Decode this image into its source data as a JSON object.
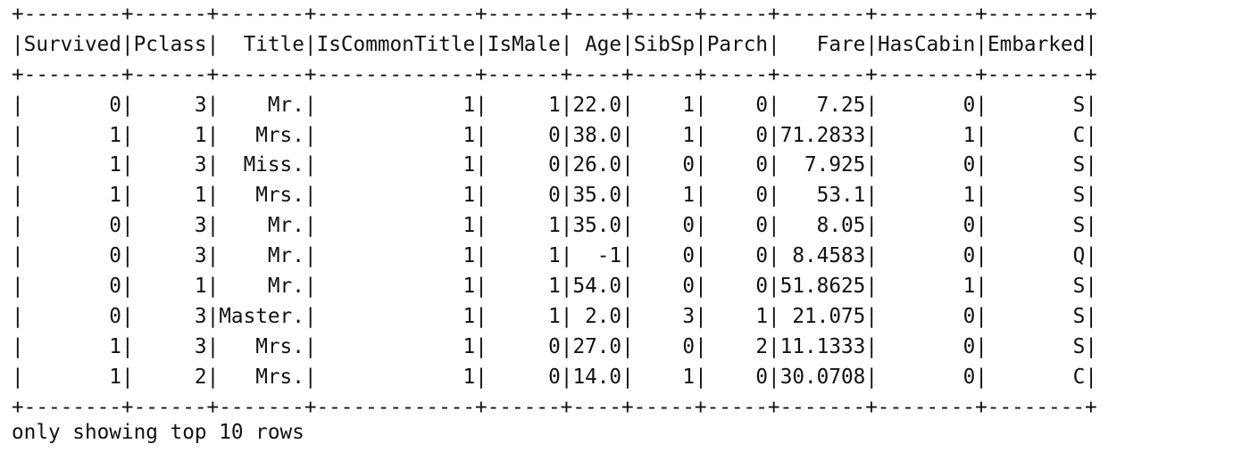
{
  "table": {
    "columns": [
      "Survived",
      "Pclass",
      "Title",
      "IsCommonTitle",
      "IsMale",
      "Age",
      "SibSp",
      "Parch",
      "Fare",
      "HasCabin",
      "Embarked"
    ],
    "rows": [
      [
        "0",
        "3",
        "Mr.",
        "1",
        "1",
        "22.0",
        "1",
        "0",
        "7.25",
        "0",
        "S"
      ],
      [
        "1",
        "1",
        "Mrs.",
        "1",
        "0",
        "38.0",
        "1",
        "0",
        "71.2833",
        "1",
        "C"
      ],
      [
        "1",
        "3",
        "Miss.",
        "1",
        "0",
        "26.0",
        "0",
        "0",
        "7.925",
        "0",
        "S"
      ],
      [
        "1",
        "1",
        "Mrs.",
        "1",
        "0",
        "35.0",
        "1",
        "0",
        "53.1",
        "1",
        "S"
      ],
      [
        "0",
        "3",
        "Mr.",
        "1",
        "1",
        "35.0",
        "0",
        "0",
        "8.05",
        "0",
        "S"
      ],
      [
        "0",
        "3",
        "Mr.",
        "1",
        "1",
        "-1",
        "0",
        "0",
        "8.4583",
        "0",
        "Q"
      ],
      [
        "0",
        "1",
        "Mr.",
        "1",
        "1",
        "54.0",
        "0",
        "0",
        "51.8625",
        "1",
        "S"
      ],
      [
        "0",
        "3",
        "Master.",
        "1",
        "1",
        "2.0",
        "3",
        "1",
        "21.075",
        "0",
        "S"
      ],
      [
        "1",
        "3",
        "Mrs.",
        "1",
        "0",
        "27.0",
        "0",
        "2",
        "11.1333",
        "0",
        "S"
      ],
      [
        "1",
        "2",
        "Mrs.",
        "1",
        "0",
        "14.0",
        "1",
        "0",
        "30.0708",
        "0",
        "C"
      ]
    ]
  },
  "footer": "only showing top 10 rows"
}
